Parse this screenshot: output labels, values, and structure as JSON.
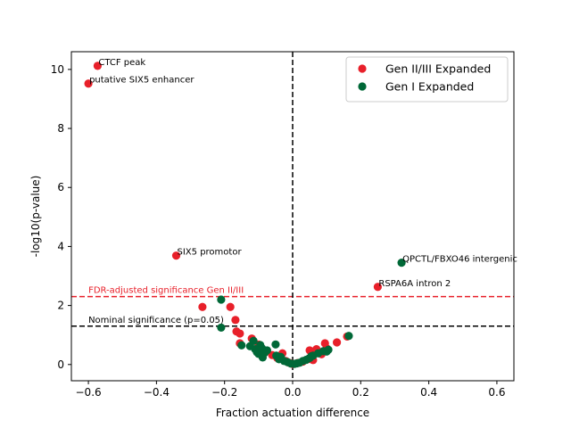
{
  "chart_data": {
    "type": "scatter",
    "title": "",
    "xlabel": "Fraction actuation difference",
    "ylabel": "-log10(p-value)",
    "xlim": [
      -0.65,
      0.65
    ],
    "ylim": [
      -0.55,
      10.6
    ],
    "x_ticks": [
      -0.6,
      -0.4,
      -0.2,
      0.0,
      0.2,
      0.4,
      0.6
    ],
    "x_tick_labels": [
      "−0.6",
      "−0.4",
      "−0.2",
      "0.0",
      "0.2",
      "0.4",
      "0.6"
    ],
    "y_ticks": [
      0,
      2,
      4,
      6,
      8,
      10
    ],
    "y_tick_labels": [
      "0",
      "2",
      "4",
      "6",
      "8",
      "10"
    ],
    "grid": false,
    "legend_position": "top-right",
    "series": [
      {
        "name": "Gen II/III Expanded",
        "color": "#e8202a",
        "points": [
          {
            "x": -0.573,
            "y": 10.12
          },
          {
            "x": -0.6,
            "y": 9.52
          },
          {
            "x": -0.342,
            "y": 3.69
          },
          {
            "x": 0.25,
            "y": 2.63
          },
          {
            "x": -0.265,
            "y": 1.95
          },
          {
            "x": -0.183,
            "y": 1.95
          },
          {
            "x": -0.168,
            "y": 1.51
          },
          {
            "x": -0.165,
            "y": 1.12
          },
          {
            "x": -0.155,
            "y": 1.05
          },
          {
            "x": -0.155,
            "y": 0.72
          },
          {
            "x": -0.12,
            "y": 0.88
          },
          {
            "x": -0.1,
            "y": 0.68
          },
          {
            "x": -0.09,
            "y": 0.48
          },
          {
            "x": -0.06,
            "y": 0.32
          },
          {
            "x": -0.045,
            "y": 0.22
          },
          {
            "x": -0.03,
            "y": 0.38
          },
          {
            "x": -0.02,
            "y": 0.12
          },
          {
            "x": -0.01,
            "y": 0.06
          },
          {
            "x": 0.0,
            "y": 0.02
          },
          {
            "x": 0.015,
            "y": 0.05
          },
          {
            "x": 0.03,
            "y": 0.1
          },
          {
            "x": 0.045,
            "y": 0.18
          },
          {
            "x": 0.05,
            "y": 0.48
          },
          {
            "x": 0.06,
            "y": 0.15
          },
          {
            "x": 0.07,
            "y": 0.52
          },
          {
            "x": 0.075,
            "y": 0.42
          },
          {
            "x": 0.085,
            "y": 0.35
          },
          {
            "x": 0.095,
            "y": 0.72
          },
          {
            "x": 0.1,
            "y": 0.55
          },
          {
            "x": 0.13,
            "y": 0.75
          },
          {
            "x": 0.16,
            "y": 0.95
          }
        ]
      },
      {
        "name": "Gen I Expanded",
        "color": "#006837",
        "points": [
          {
            "x": 0.32,
            "y": 3.45
          },
          {
            "x": -0.21,
            "y": 2.2
          },
          {
            "x": -0.21,
            "y": 1.25
          },
          {
            "x": -0.15,
            "y": 0.65
          },
          {
            "x": -0.125,
            "y": 0.62
          },
          {
            "x": -0.115,
            "y": 0.8
          },
          {
            "x": -0.11,
            "y": 0.52
          },
          {
            "x": -0.105,
            "y": 0.42
          },
          {
            "x": -0.1,
            "y": 0.36
          },
          {
            "x": -0.095,
            "y": 0.66
          },
          {
            "x": -0.09,
            "y": 0.55
          },
          {
            "x": -0.088,
            "y": 0.24
          },
          {
            "x": -0.082,
            "y": 0.4
          },
          {
            "x": -0.075,
            "y": 0.48
          },
          {
            "x": -0.05,
            "y": 0.68
          },
          {
            "x": -0.048,
            "y": 0.3
          },
          {
            "x": -0.04,
            "y": 0.18
          },
          {
            "x": -0.035,
            "y": 0.26
          },
          {
            "x": -0.025,
            "y": 0.12
          },
          {
            "x": -0.015,
            "y": 0.08
          },
          {
            "x": -0.005,
            "y": 0.03
          },
          {
            "x": 0.005,
            "y": 0.02
          },
          {
            "x": 0.012,
            "y": 0.04
          },
          {
            "x": 0.02,
            "y": 0.06
          },
          {
            "x": 0.03,
            "y": 0.12
          },
          {
            "x": 0.04,
            "y": 0.16
          },
          {
            "x": 0.05,
            "y": 0.22
          },
          {
            "x": 0.055,
            "y": 0.28
          },
          {
            "x": 0.06,
            "y": 0.3
          },
          {
            "x": 0.075,
            "y": 0.38
          },
          {
            "x": 0.09,
            "y": 0.45
          },
          {
            "x": 0.1,
            "y": 0.44
          },
          {
            "x": 0.105,
            "y": 0.5
          },
          {
            "x": 0.165,
            "y": 0.97
          }
        ]
      }
    ],
    "annotations": [
      {
        "text": "CTCF peak",
        "x": -0.573,
        "y": 10.12
      },
      {
        "text": "putative SIX5 enhancer",
        "x": -0.6,
        "y": 9.52
      },
      {
        "text": "SIX5 promotor",
        "x": -0.342,
        "y": 3.69
      },
      {
        "text": "QPCTL/FBXO46 intergenic",
        "x": 0.32,
        "y": 3.45
      },
      {
        "text": "RSPA6A intron 2",
        "x": 0.25,
        "y": 2.63
      }
    ],
    "reference_lines": [
      {
        "orientation": "horizontal",
        "value": 2.3,
        "color": "#e8202a",
        "style": "dashed",
        "label": "FDR-adjusted significance Gen II/III",
        "label_x": -0.6,
        "label_color": "#e8202a"
      },
      {
        "orientation": "horizontal",
        "value": 1.3,
        "color": "#000000",
        "style": "dashed",
        "label": "Nominal significance (p=0.05)",
        "label_x": -0.6,
        "label_color": "#000000"
      },
      {
        "orientation": "vertical",
        "value": 0,
        "color": "#000000",
        "style": "dashed",
        "label": ""
      }
    ]
  }
}
